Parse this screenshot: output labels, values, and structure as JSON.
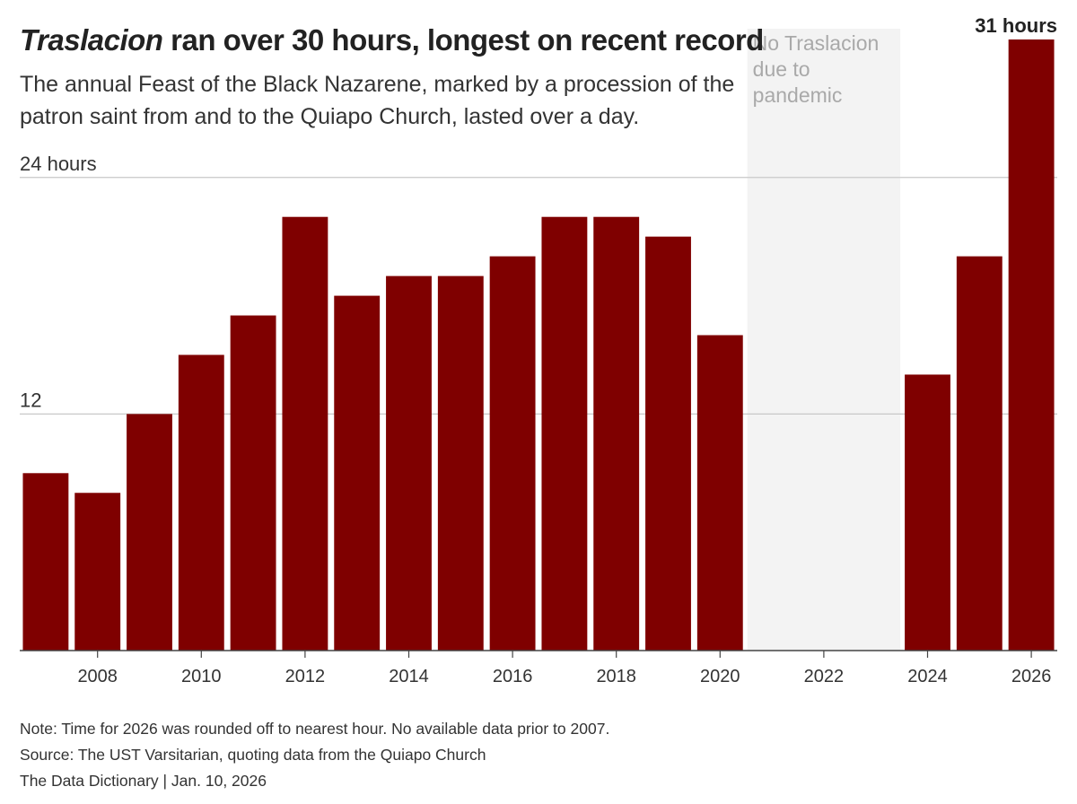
{
  "title": {
    "italic": "Traslacion",
    "rest": " ran over 30 hours, longest on recent record"
  },
  "subtitle": "The annual Feast of the Black Nazarene, marked by a procession of the patron saint from and to the Quiapo Church, lasted over a day.",
  "chart_data": {
    "type": "bar",
    "x": [
      2007,
      2008,
      2009,
      2010,
      2011,
      2012,
      2013,
      2014,
      2015,
      2016,
      2017,
      2018,
      2019,
      2020,
      2024,
      2025,
      2026
    ],
    "values": [
      9,
      8,
      12,
      15,
      17,
      22,
      18,
      19,
      19,
      20,
      22,
      22,
      21,
      16,
      14,
      20,
      31
    ],
    "xlim": [
      2006.5,
      2026.5
    ],
    "ylim": [
      0,
      31
    ],
    "x_ticks": [
      2008,
      2010,
      2012,
      2014,
      2016,
      2018,
      2020,
      2022,
      2024,
      2026
    ],
    "y_gridlines": [
      {
        "value": 24,
        "label": "24 hours"
      },
      {
        "value": 12,
        "label": "12"
      }
    ],
    "shaded_region": {
      "from": 2021,
      "to": 2023,
      "label": "No Traslacion due to pandemic"
    },
    "shaded_label_lines": [
      "No Traslacion",
      "due to",
      "pandemic"
    ],
    "last_bar_label": "31 hours",
    "bar_color": "#7f0000",
    "shade_color": "#f3f3f3",
    "grid_color": "#c8c8c8",
    "axis_color": "#444444",
    "shade_text_color": "#a9a9a9"
  },
  "notes": {
    "note": "Note: Time for 2026 was rounded off to nearest hour. No available data prior to 2007.",
    "source": "Source: The UST Varsitarian, quoting data from the Quiapo Church",
    "credit": "The Data Dictionary | Jan. 10, 2026"
  }
}
